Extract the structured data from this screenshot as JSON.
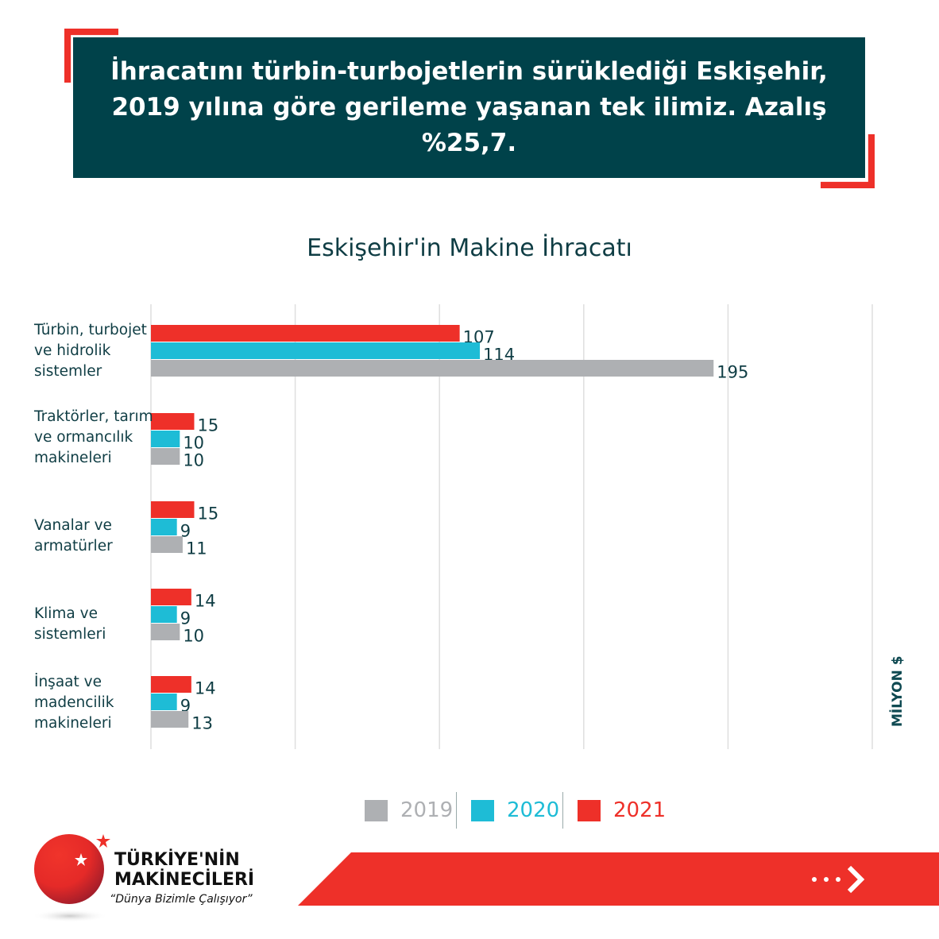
{
  "banner": {
    "line1": "İhracatını türbin-turbojetlerin sürüklediği Eskişehir,",
    "line2": "2019 yılına göre gerileme yaşanan tek ilimiz. Azalış %25,7."
  },
  "colors": {
    "dark": "#00424a",
    "red": "#ee3029",
    "cyan": "#1ebcd6",
    "gray": "#aeb0b3"
  },
  "chart_data": {
    "type": "bar",
    "orientation": "horizontal",
    "title": "Eskişehir'in Makine İhracatı",
    "unit_label": "MİLYON $",
    "xlim": [
      0,
      250
    ],
    "grid": true,
    "legend_position": "bottom",
    "categories": [
      "Türbin, turbojet\nve hidrolik\nsistemler",
      "Traktörler, tarım\nve ormancılık\nmakineleri",
      "Vanalar ve\narmatürler",
      "Klima ve\nsistemleri",
      "İnşaat ve\nmadencilik\nmakineleri"
    ],
    "series": [
      {
        "name": "2021",
        "color": "#ee3029",
        "values": [
          107,
          15,
          15,
          14,
          14
        ]
      },
      {
        "name": "2020",
        "color": "#1ebcd6",
        "values": [
          114,
          10,
          9,
          9,
          9
        ]
      },
      {
        "name": "2019",
        "color": "#aeb0b3",
        "values": [
          195,
          10,
          11,
          10,
          13
        ]
      }
    ]
  },
  "logo": {
    "line1": "TÜRKİYE'NİN",
    "line2": "MAKİNECİLERİ",
    "slogan": "“Dünya Bizimle Çalışıyor”"
  }
}
